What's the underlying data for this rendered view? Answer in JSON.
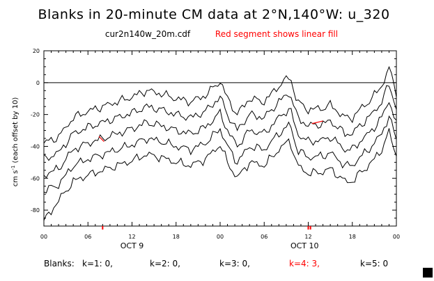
{
  "chart_data": {
    "type": "line",
    "title": "Blanks in 20-minute CM data at 2°N,140°W: u_320",
    "subtitle": "cur2n140w_20m.cdf",
    "annotation": "Red segment shows linear fill",
    "ylabel_main": "cm s",
    "ylabel_sup": "-1",
    "ylabel_tail": " (each offset by 10)",
    "ylim": [
      -90,
      20
    ],
    "yticks": [
      20,
      0,
      -20,
      -40,
      -60,
      -80
    ],
    "xlim": [
      0,
      48
    ],
    "xticks": [
      0,
      6,
      12,
      18,
      24,
      30,
      36,
      42,
      48
    ],
    "xtick_labels": [
      "00",
      "06",
      "12",
      "18",
      "00",
      "06",
      "12",
      "18",
      "00"
    ],
    "date_labels": [
      {
        "x": 12,
        "text": "OCT  9"
      },
      {
        "x": 35.5,
        "text": "OCT 10"
      }
    ],
    "zero_line": 0,
    "x_unit": "hours from OCT 9 00:00",
    "keypoints_x": [
      0,
      2,
      4,
      6,
      8,
      10,
      12,
      14,
      16,
      18,
      20,
      22,
      24,
      25,
      26.3,
      28,
      30,
      32,
      33.5,
      34.5,
      36,
      38,
      39,
      40,
      41,
      42,
      43,
      44,
      45,
      46,
      47,
      48
    ],
    "series": [
      {
        "name": "k=1 (offset 0)",
        "values": [
          -38,
          -34,
          -22,
          -18,
          -15,
          -12,
          -9,
          -5,
          -7,
          -10,
          -12,
          -8,
          1,
          -10,
          -20,
          -10,
          -12,
          -2,
          4,
          -12,
          -17,
          -16,
          -14,
          -18,
          -22,
          -22,
          -17,
          -13,
          -8,
          -2,
          9,
          -6
        ]
      },
      {
        "name": "k=2 (offset -10)",
        "values": [
          -48,
          -44,
          -32,
          -28,
          -25,
          -22,
          -19,
          -15,
          -17,
          -20,
          -22,
          -18,
          -9,
          -20,
          -30,
          -20,
          -22,
          -12,
          -6,
          -22,
          -27,
          -26,
          -24,
          -28,
          -32,
          -32,
          -27,
          -23,
          -18,
          -12,
          -1,
          -16
        ]
      },
      {
        "name": "k=3 (offset -20)",
        "values": [
          -58,
          -54,
          -42,
          -38,
          -35,
          -32,
          -29,
          -25,
          -27,
          -30,
          -32,
          -28,
          -19,
          -30,
          -40,
          -30,
          -32,
          -22,
          -16,
          -32,
          -37,
          -36,
          -34,
          -38,
          -42,
          -42,
          -37,
          -33,
          -28,
          -22,
          -11,
          -26
        ]
      },
      {
        "name": "k=4 (offset -30)",
        "values": [
          -68,
          -64,
          -52,
          -48,
          -45,
          -42,
          -39,
          -35,
          -37,
          -40,
          -42,
          -38,
          -29,
          -40,
          -50,
          -40,
          -42,
          -32,
          -26,
          -42,
          -47,
          -46,
          -44,
          -48,
          -52,
          -52,
          -47,
          -43,
          -38,
          -32,
          -21,
          -36
        ]
      },
      {
        "name": "k=5 (offset -40)",
        "values": [
          -87,
          -74,
          -62,
          -58,
          -55,
          -52,
          -49,
          -45,
          -47,
          -50,
          -52,
          -48,
          -39,
          -50,
          -60,
          -50,
          -52,
          -42,
          -36,
          -52,
          -57,
          -56,
          -54,
          -58,
          -62,
          -62,
          -57,
          -53,
          -48,
          -42,
          -31,
          -46
        ]
      }
    ],
    "fill_segments": [
      {
        "series_index": 1,
        "x": [
          36.5,
          38
        ]
      },
      {
        "series_index": 2,
        "x": [
          7.5,
          8.2
        ]
      }
    ],
    "blank_markers_x": [
      8,
      36,
      36.3
    ],
    "blanks_label": "Blanks:",
    "blanks": [
      {
        "label": "k=1: 0,",
        "highlight": false
      },
      {
        "label": "k=2: 0,",
        "highlight": false
      },
      {
        "label": "k=3: 0,",
        "highlight": false
      },
      {
        "label": "k=4: 3,",
        "highlight": true
      },
      {
        "label": "k=5: 0",
        "highlight": false
      }
    ],
    "colors": {
      "line": "#000000",
      "fill": "#ff0000",
      "axis": "#000000"
    }
  }
}
